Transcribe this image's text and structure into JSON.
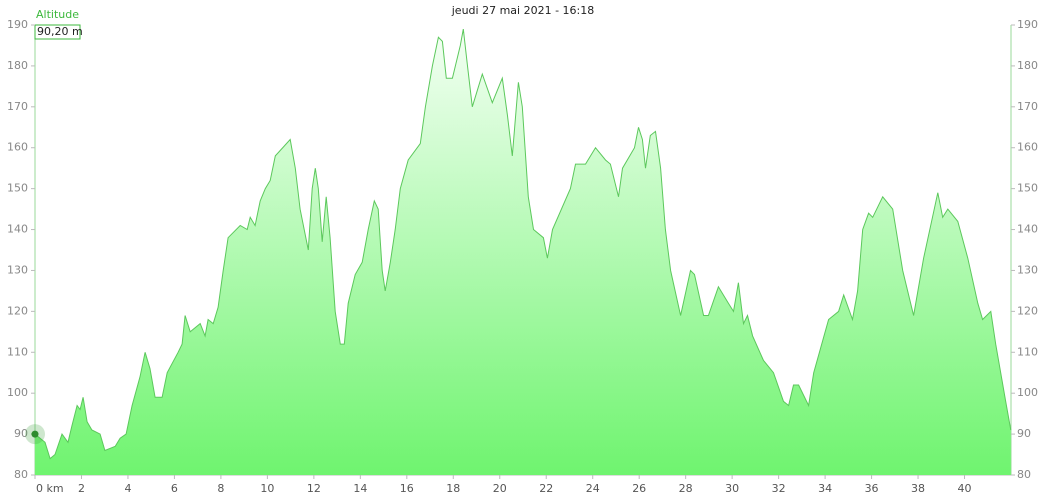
{
  "chart_data": {
    "type": "area",
    "title": "jeudi 27 mai 2021 - 16:18",
    "ylabel": "Altitude",
    "tooltip": "90,20 m",
    "x": [
      0,
      0.43,
      0.65,
      0.86,
      1.16,
      1.42,
      1.59,
      1.81,
      1.94,
      2.07,
      2.24,
      2.45,
      2.8,
      3.01,
      3.45,
      3.66,
      3.92,
      4.18,
      4.52,
      4.74,
      4.95,
      5.17,
      5.47,
      5.69,
      6.16,
      6.33,
      6.46,
      6.68,
      7.11,
      7.32,
      7.45,
      7.67,
      7.88,
      8.1,
      8.31,
      8.83,
      9.13,
      9.26,
      9.47,
      9.69,
      9.91,
      10.12,
      10.34,
      10.98,
      11.2,
      11.41,
      11.76,
      11.93,
      12.06,
      12.19,
      12.36,
      12.53,
      12.7,
      12.92,
      13.14,
      13.31,
      13.48,
      13.78,
      14.08,
      14.34,
      14.6,
      14.77,
      14.94,
      15.07,
      15.29,
      15.5,
      15.72,
      16.06,
      16.58,
      16.8,
      17.1,
      17.36,
      17.53,
      17.7,
      17.96,
      18.3,
      18.43,
      18.61,
      18.82,
      19.25,
      19.68,
      20.11,
      20.33,
      20.54,
      20.8,
      20.97,
      21.23,
      21.45,
      21.88,
      22.05,
      22.27,
      23.04,
      23.26,
      23.69,
      24.12,
      24.55,
      24.76,
      25.11,
      25.28,
      25.8,
      25.97,
      26.14,
      26.27,
      26.48,
      26.7,
      26.92,
      27.13,
      27.35,
      27.78,
      28.21,
      28.38,
      28.77,
      28.98,
      29.41,
      29.84,
      30.06,
      30.27,
      30.49,
      30.66,
      30.88,
      31.35,
      31.78,
      32.21,
      32.43,
      32.64,
      32.86,
      33.29,
      33.51,
      34.15,
      34.58,
      34.8,
      35.18,
      35.4,
      35.62,
      35.87,
      36.05,
      36.48,
      36.91,
      37.34,
      37.81,
      38.24,
      38.85,
      39.06,
      39.28,
      39.71,
      40.14,
      40.57,
      40.78,
      41.13,
      41.34,
      41.77,
      41.99
    ],
    "values": [
      90,
      88,
      84,
      85,
      90,
      88,
      92,
      97,
      96,
      99,
      93,
      91,
      90,
      86,
      87,
      89,
      90,
      97,
      104,
      110,
      106,
      99,
      99,
      105,
      110,
      112,
      119,
      115,
      117,
      114,
      118,
      117,
      121,
      130,
      138,
      141,
      140,
      143,
      141,
      147,
      150,
      152,
      158,
      162,
      155,
      145,
      135,
      150,
      155,
      150,
      137,
      148,
      138,
      120,
      112,
      112,
      122,
      129,
      132,
      140,
      147,
      145,
      130,
      125,
      132,
      140,
      150,
      157,
      161,
      170,
      180,
      187,
      186,
      177,
      177,
      185,
      189,
      180,
      170,
      178,
      171,
      177,
      168,
      158,
      176,
      170,
      148,
      140,
      138,
      133,
      140,
      150,
      156,
      156,
      160,
      157,
      156,
      148,
      155,
      160,
      165,
      162,
      155,
      163,
      164,
      155,
      140,
      130,
      119,
      130,
      129,
      119,
      119,
      126,
      122,
      120,
      127,
      117,
      119,
      114,
      108,
      105,
      98,
      97,
      102,
      102,
      97,
      105,
      118,
      120,
      124,
      118,
      125,
      140,
      144,
      143,
      148,
      145,
      130,
      119,
      133,
      149,
      143,
      145,
      142,
      133,
      122,
      118,
      120,
      112,
      98,
      91
    ],
    "color": "#5cc85c",
    "xlim": [
      0,
      42
    ],
    "xticks": [
      {
        "value": 0,
        "label": "0 km"
      },
      2,
      4,
      6,
      8,
      10,
      12,
      14,
      16,
      18,
      20,
      22,
      24,
      26,
      28,
      30,
      32,
      34,
      36,
      38,
      40
    ],
    "ylim": [
      80,
      190
    ],
    "yticks": [
      80,
      90,
      100,
      110,
      120,
      130,
      140,
      150,
      160,
      170,
      180,
      190
    ],
    "y2lim": [
      80,
      190
    ],
    "y2ticks": [
      80,
      90,
      100,
      110,
      120,
      130,
      140,
      150,
      160,
      170,
      180,
      190
    ]
  }
}
